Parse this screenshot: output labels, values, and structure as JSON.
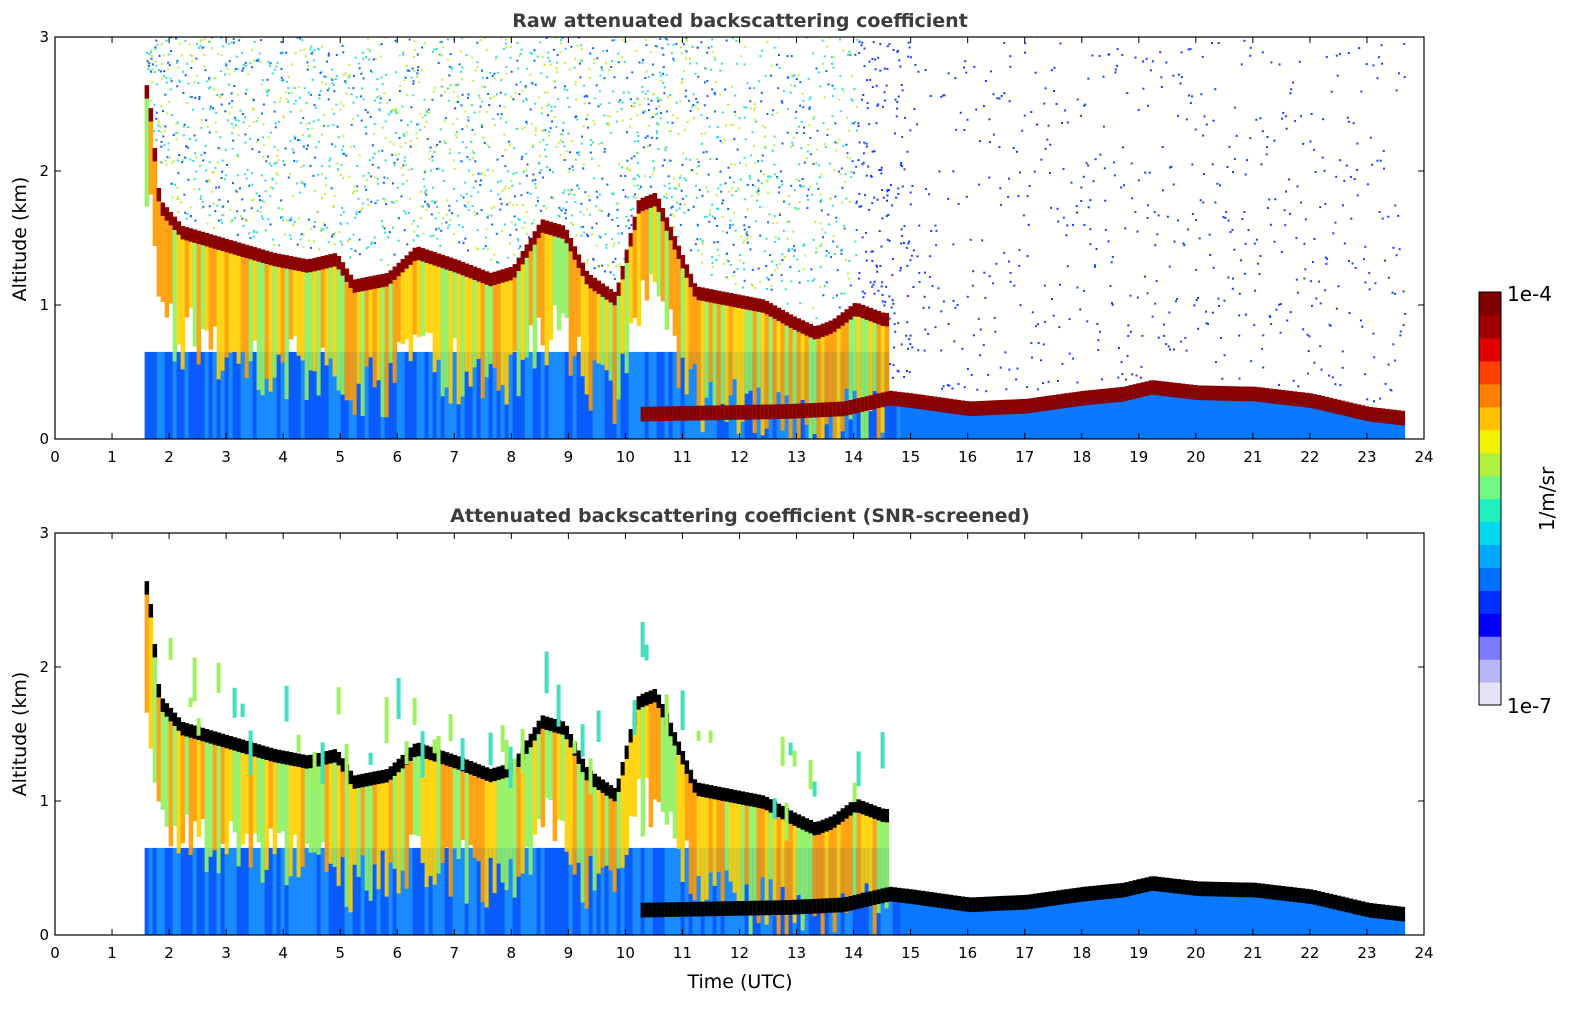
{
  "chart_data": [
    {
      "type": "heatmap",
      "title": "Raw attenuated backscattering coefficient",
      "xlabel": "",
      "ylabel": "Altitude (km)",
      "xlim": [
        0,
        24
      ],
      "ylim": [
        0,
        3
      ],
      "x_ticks": [
        "0",
        "1",
        "2",
        "3",
        "4",
        "5",
        "6",
        "7",
        "8",
        "9",
        "10",
        "11",
        "12",
        "13",
        "14",
        "15",
        "16",
        "17",
        "18",
        "19",
        "20",
        "21",
        "22",
        "23",
        "24"
      ],
      "y_ticks": [
        "0",
        "1",
        "2",
        "3"
      ],
      "data_start_hour": 1.57,
      "data_end_hour": 23.6,
      "screened": false,
      "cloud_layer_altitude_km": [
        {
          "t": 1.6,
          "z": 2.6
        },
        {
          "t": 1.8,
          "z": 1.75
        },
        {
          "t": 2.2,
          "z": 1.55
        },
        {
          "t": 3.0,
          "z": 1.45
        },
        {
          "t": 3.8,
          "z": 1.35
        },
        {
          "t": 4.4,
          "z": 1.3
        },
        {
          "t": 4.9,
          "z": 1.35
        },
        {
          "t": 5.2,
          "z": 1.15
        },
        {
          "t": 5.8,
          "z": 1.2
        },
        {
          "t": 6.3,
          "z": 1.4
        },
        {
          "t": 7.0,
          "z": 1.3
        },
        {
          "t": 7.6,
          "z": 1.2
        },
        {
          "t": 8.0,
          "z": 1.25
        },
        {
          "t": 8.5,
          "z": 1.6
        },
        {
          "t": 8.9,
          "z": 1.55
        },
        {
          "t": 9.3,
          "z": 1.2
        },
        {
          "t": 9.8,
          "z": 1.05
        },
        {
          "t": 10.2,
          "z": 1.75
        },
        {
          "t": 10.5,
          "z": 1.8
        },
        {
          "t": 11.2,
          "z": 1.1
        },
        {
          "t": 11.8,
          "z": 1.05
        },
        {
          "t": 12.4,
          "z": 1.0
        },
        {
          "t": 12.9,
          "z": 0.88
        },
        {
          "t": 13.3,
          "z": 0.8
        },
        {
          "t": 13.6,
          "z": 0.85
        },
        {
          "t": 14.0,
          "z": 0.98
        },
        {
          "t": 14.5,
          "z": 0.9
        }
      ],
      "low_layer_altitude_km": [
        {
          "t": 10.2,
          "z": 0.18
        },
        {
          "t": 12.8,
          "z": 0.2
        },
        {
          "t": 13.8,
          "z": 0.22
        },
        {
          "t": 14.6,
          "z": 0.3
        },
        {
          "t": 15.0,
          "z": 0.28
        },
        {
          "t": 16.0,
          "z": 0.22
        },
        {
          "t": 17.0,
          "z": 0.24
        },
        {
          "t": 18.0,
          "z": 0.3
        },
        {
          "t": 18.7,
          "z": 0.33
        },
        {
          "t": 19.2,
          "z": 0.38
        },
        {
          "t": 20.0,
          "z": 0.34
        },
        {
          "t": 21.0,
          "z": 0.33
        },
        {
          "t": 22.0,
          "z": 0.28
        },
        {
          "t": 23.0,
          "z": 0.18
        },
        {
          "t": 23.6,
          "z": 0.15
        }
      ]
    },
    {
      "type": "heatmap",
      "title": "Attenuated backscattering coefficient (SNR-screened)",
      "xlabel": "Time (UTC)",
      "ylabel": "Altitude (km)",
      "xlim": [
        0,
        24
      ],
      "ylim": [
        0,
        3
      ],
      "x_ticks": [
        "0",
        "1",
        "2",
        "3",
        "4",
        "5",
        "6",
        "7",
        "8",
        "9",
        "10",
        "11",
        "12",
        "13",
        "14",
        "15",
        "16",
        "17",
        "18",
        "19",
        "20",
        "21",
        "22",
        "23",
        "24"
      ],
      "y_ticks": [
        "0",
        "1",
        "2",
        "3"
      ],
      "data_start_hour": 1.57,
      "data_end_hour": 23.6,
      "screened": true
    }
  ],
  "colorbar": {
    "label": "1/m/sr",
    "max_label": "1e-4",
    "min_label": "1e-7",
    "colors": [
      "#e4e4f6",
      "#b6b6f4",
      "#7a7aff",
      "#0000ff",
      "#0030ff",
      "#0070ff",
      "#00a8ff",
      "#00d8f0",
      "#20f0c0",
      "#70f880",
      "#b0f040",
      "#f0f000",
      "#ffc000",
      "#ff8000",
      "#ff4000",
      "#e00000",
      "#a00000",
      "#800000"
    ]
  }
}
